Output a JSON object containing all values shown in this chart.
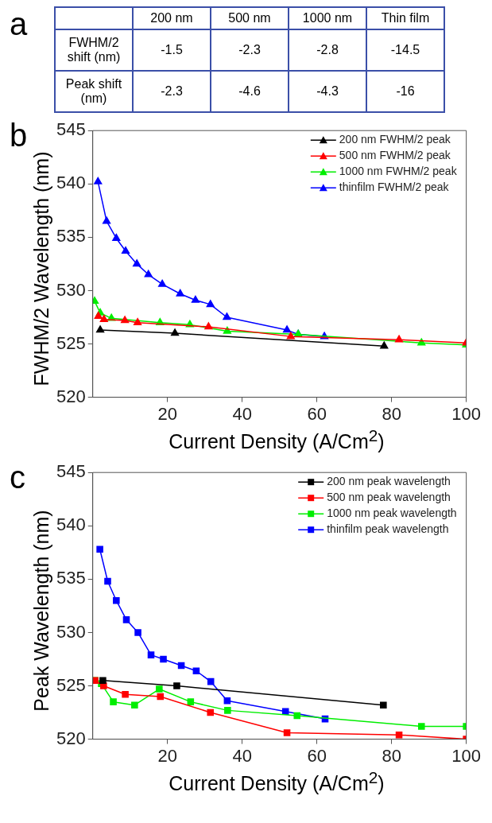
{
  "chart_data": [
    {
      "type": "other",
      "annotations": [
        "a"
      ],
      "categories": [
        "200 nm",
        "500 nm",
        "1000 nm",
        "Thin film"
      ],
      "y_categories": [
        "FWHM/2 shift (nm)",
        "Peak shift (nm)"
      ],
      "cell_labels": [
        [
          "-1.5",
          "-2.3",
          "-2.8",
          "-14.5"
        ],
        [
          "-2.3",
          "-4.6",
          "-4.3",
          "-16"
        ]
      ]
    },
    {
      "type": "line",
      "annotations": [
        "b"
      ],
      "xlabel": "Current Density (A/Cm$^{2}$)",
      "ylabel": "FWHM/2 Wavelength (nm)",
      "xlim": [
        0,
        100
      ],
      "xticks": [
        20,
        40,
        60,
        80,
        100
      ],
      "ylim": [
        520,
        545
      ],
      "yticks": [
        520,
        525,
        530,
        535,
        540,
        545
      ],
      "grid": false,
      "legend": "top right",
      "marker": "triangle",
      "series": [
        {
          "name": "200 nm FWHM/2 peak",
          "color": "#000000",
          "x": [
            2,
            22,
            78
          ],
          "values": [
            526.3,
            526.0,
            524.8
          ]
        },
        {
          "name": "500 nm FWHM/2 peak",
          "color": "#ff0000",
          "x": [
            1.5,
            3,
            8.6,
            12,
            31,
            53,
            82,
            100
          ],
          "values": [
            527.6,
            527.3,
            527.2,
            527.0,
            526.6,
            525.7,
            525.4,
            525.1
          ]
        },
        {
          "name": "1000 nm FWHM/2 peak",
          "color": "#00ee00",
          "x": [
            0.5,
            2,
            5,
            18,
            26,
            36,
            55,
            88,
            100
          ],
          "values": [
            529.0,
            527.9,
            527.4,
            527.0,
            526.8,
            526.2,
            525.9,
            525.1,
            524.9
          ]
        },
        {
          "name": "thinfilm FWHM/2 peak",
          "color": "#0000ff",
          "x": [
            1.4,
            3.7,
            6.3,
            8.8,
            11.8,
            14.9,
            18.6,
            23.4,
            27.5,
            31.5,
            35.9,
            52,
            55,
            62
          ],
          "values": [
            540.2,
            536.5,
            534.9,
            533.7,
            532.5,
            531.5,
            530.6,
            529.7,
            529.1,
            528.7,
            527.5,
            526.3,
            525.9,
            525.7
          ]
        }
      ]
    },
    {
      "type": "line",
      "annotations": [
        "c"
      ],
      "xlabel": "Current Density (A/Cm$^{2}$)",
      "ylabel": "Peak Wavelength (nm)",
      "xlim": [
        0,
        100
      ],
      "xticks": [
        20,
        40,
        60,
        80,
        100
      ],
      "ylim": [
        520,
        545
      ],
      "yticks": [
        520,
        525,
        530,
        535,
        540,
        545
      ],
      "grid": false,
      "legend": "top right",
      "marker": "square",
      "series": [
        {
          "name": "200 nm peak wavelength",
          "color": "#000000",
          "x": [
            2.7,
            22.5,
            77.8
          ],
          "values": [
            525.5,
            525.0,
            523.2
          ]
        },
        {
          "name": "500 nm peak wavelength",
          "color": "#ff0000",
          "x": [
            0.6,
            2.9,
            8.7,
            18.1,
            31.5,
            52,
            82,
            100
          ],
          "values": [
            525.5,
            525.0,
            524.2,
            524.0,
            522.5,
            520.6,
            520.4,
            520.0
          ]
        },
        {
          "name": "1000 nm peak wavelength",
          "color": "#00ee00",
          "x": [
            0.6,
            2.3,
            5.5,
            11.2,
            17.8,
            26.2,
            36.1,
            54.7,
            88,
            100
          ],
          "values": [
            525.5,
            525.2,
            523.5,
            523.2,
            524.7,
            523.5,
            522.7,
            522.2,
            521.2,
            521.2
          ]
        },
        {
          "name": "thinfilm peak wavelength",
          "color": "#0000ff",
          "x": [
            1.9,
            4.0,
            6.3,
            9.0,
            12.1,
            15.6,
            18.9,
            23.7,
            27.7,
            31.6,
            36.0,
            51.6,
            62.2
          ],
          "values": [
            537.8,
            534.8,
            533.0,
            531.2,
            530.0,
            527.9,
            527.5,
            526.9,
            526.4,
            525.4,
            523.6,
            522.6,
            521.9
          ]
        }
      ]
    }
  ]
}
